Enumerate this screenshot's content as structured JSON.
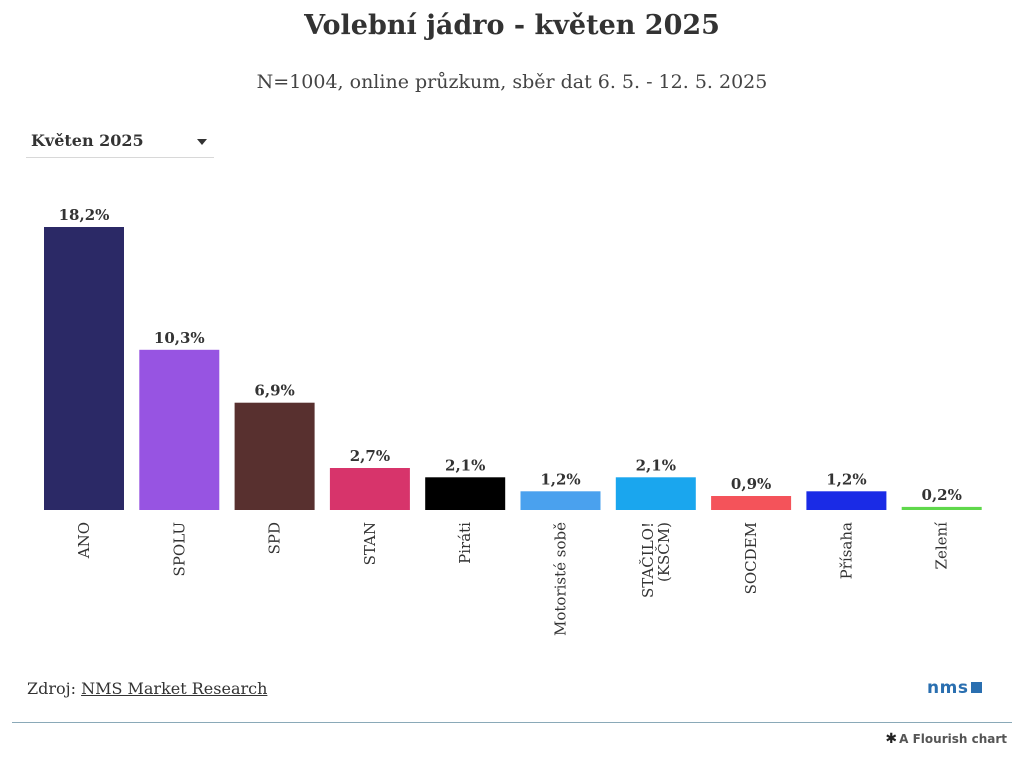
{
  "title": "Volební jádro - květen 2025",
  "subtitle": "N=1004, online průzkum, sběr dat 6. 5. - 12. 5. 2025",
  "dropdown": {
    "selected": "Květen 2025"
  },
  "footer": {
    "source_prefix": "Zdroj: ",
    "source_link": "NMS Market Research",
    "logo_text": "nms",
    "flourish_label": "A Flourish chart"
  },
  "chart_data": {
    "type": "bar",
    "categories": [
      "ANO",
      "SPOLU",
      "SPD",
      "STAN",
      "Piráti",
      "Motoristé sobě",
      "STAČILO! (KSČM)",
      "SOCDEM",
      "Přísaha",
      "Zelení"
    ],
    "category_lines": [
      [
        "ANO"
      ],
      [
        "SPOLU"
      ],
      [
        "SPD"
      ],
      [
        "STAN"
      ],
      [
        "Piráti"
      ],
      [
        "Motoristé sobě"
      ],
      [
        "STAČILO!",
        "(KSČM)"
      ],
      [
        "SOCDEM"
      ],
      [
        "Přísaha"
      ],
      [
        "Zelení"
      ]
    ],
    "values": [
      18.2,
      10.3,
      6.9,
      2.7,
      2.1,
      1.2,
      2.1,
      0.9,
      1.2,
      0.2
    ],
    "value_labels": [
      "18,2%",
      "10,3%",
      "6,9%",
      "2,7%",
      "2,1%",
      "1,2%",
      "2,1%",
      "0,9%",
      "1,2%",
      "0,2%"
    ],
    "colors": [
      "#2b2966",
      "#9754e2",
      "#58302f",
      "#d7346b",
      "#000000",
      "#4aa1ee",
      "#1aa6ee",
      "#f4535a",
      "#1a2be6",
      "#5fd84b"
    ],
    "ylim": [
      0,
      18.2
    ],
    "grid": false,
    "legend": "none",
    "xlabel": "",
    "ylabel": ""
  }
}
